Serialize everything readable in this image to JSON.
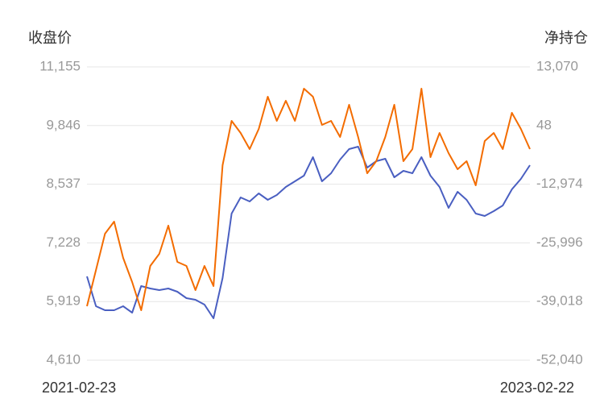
{
  "chart_data": {
    "type": "line",
    "y_label": "收盘价",
    "y2_label": "净持仓",
    "categories": [
      "2021-02-23",
      null,
      null,
      null,
      null,
      null,
      null,
      null,
      null,
      null,
      null,
      null,
      null,
      null,
      null,
      null,
      null,
      null,
      null,
      null,
      null,
      null,
      null,
      null,
      null,
      null,
      null,
      null,
      null,
      null,
      null,
      null,
      null,
      null,
      null,
      null,
      null,
      null,
      null,
      null,
      null,
      null,
      null,
      null,
      null,
      null,
      null,
      null,
      null,
      "2023-02-22"
    ],
    "ylim": [
      4610,
      11155
    ],
    "yticks": [
      {
        "value": 4610,
        "label": "4,610"
      },
      {
        "value": 5919,
        "label": "5,919"
      },
      {
        "value": 7228,
        "label": "7,228"
      },
      {
        "value": 8537,
        "label": "8,537"
      },
      {
        "value": 9846,
        "label": "9,846"
      },
      {
        "value": 11155,
        "label": "11,155"
      }
    ],
    "y2lim": [
      -52040,
      13070
    ],
    "y2ticks": [
      {
        "value": -52040,
        "label": "-52,040"
      },
      {
        "value": -39018,
        "label": "-39,018"
      },
      {
        "value": -25996,
        "label": "-25,996"
      },
      {
        "value": -12974,
        "label": "-12,974"
      },
      48,
      {
        "value": 13070,
        "label": "13,070"
      }
    ],
    "grid": true,
    "series": [
      {
        "name": "收盘价",
        "color": "#4a5fc1",
        "values": [
          6480,
          5815,
          5725,
          5725,
          5815,
          5671,
          6264,
          6210,
          6174,
          6210,
          6138,
          5994,
          5959,
          5851,
          5545,
          6444,
          7882,
          8242,
          8152,
          8332,
          8188,
          8296,
          8476,
          8602,
          8727,
          9141,
          8602,
          8781,
          9087,
          9321,
          9375,
          8907,
          9051,
          9105,
          8691,
          8835,
          8781,
          9141,
          8727,
          8476,
          8008,
          8368,
          8188,
          7882,
          7828,
          7936,
          8062,
          8422,
          8656,
          8961
        ]
      },
      {
        "name": "净持仓",
        "color": "#f36c00",
        "axis": "y2",
        "values": [
          -40063,
          -32013,
          -23962,
          -21279,
          -29329,
          -34696,
          -40958,
          -31118,
          -28435,
          -22173,
          -30224,
          -31118,
          -36485,
          -31118,
          -35591,
          -8756,
          1084,
          -1600,
          -5178,
          -705,
          6451,
          1084,
          5556,
          1084,
          8240,
          6451,
          189,
          1084,
          -2494,
          4662,
          -2494,
          -10545,
          -7861,
          -2494,
          4662,
          -7861,
          -5178,
          8240,
          -6967,
          -1600,
          -6072,
          -9650,
          -7861,
          -13228,
          -3389,
          -1600,
          -5178,
          2873,
          -705,
          -5178
        ]
      }
    ]
  }
}
